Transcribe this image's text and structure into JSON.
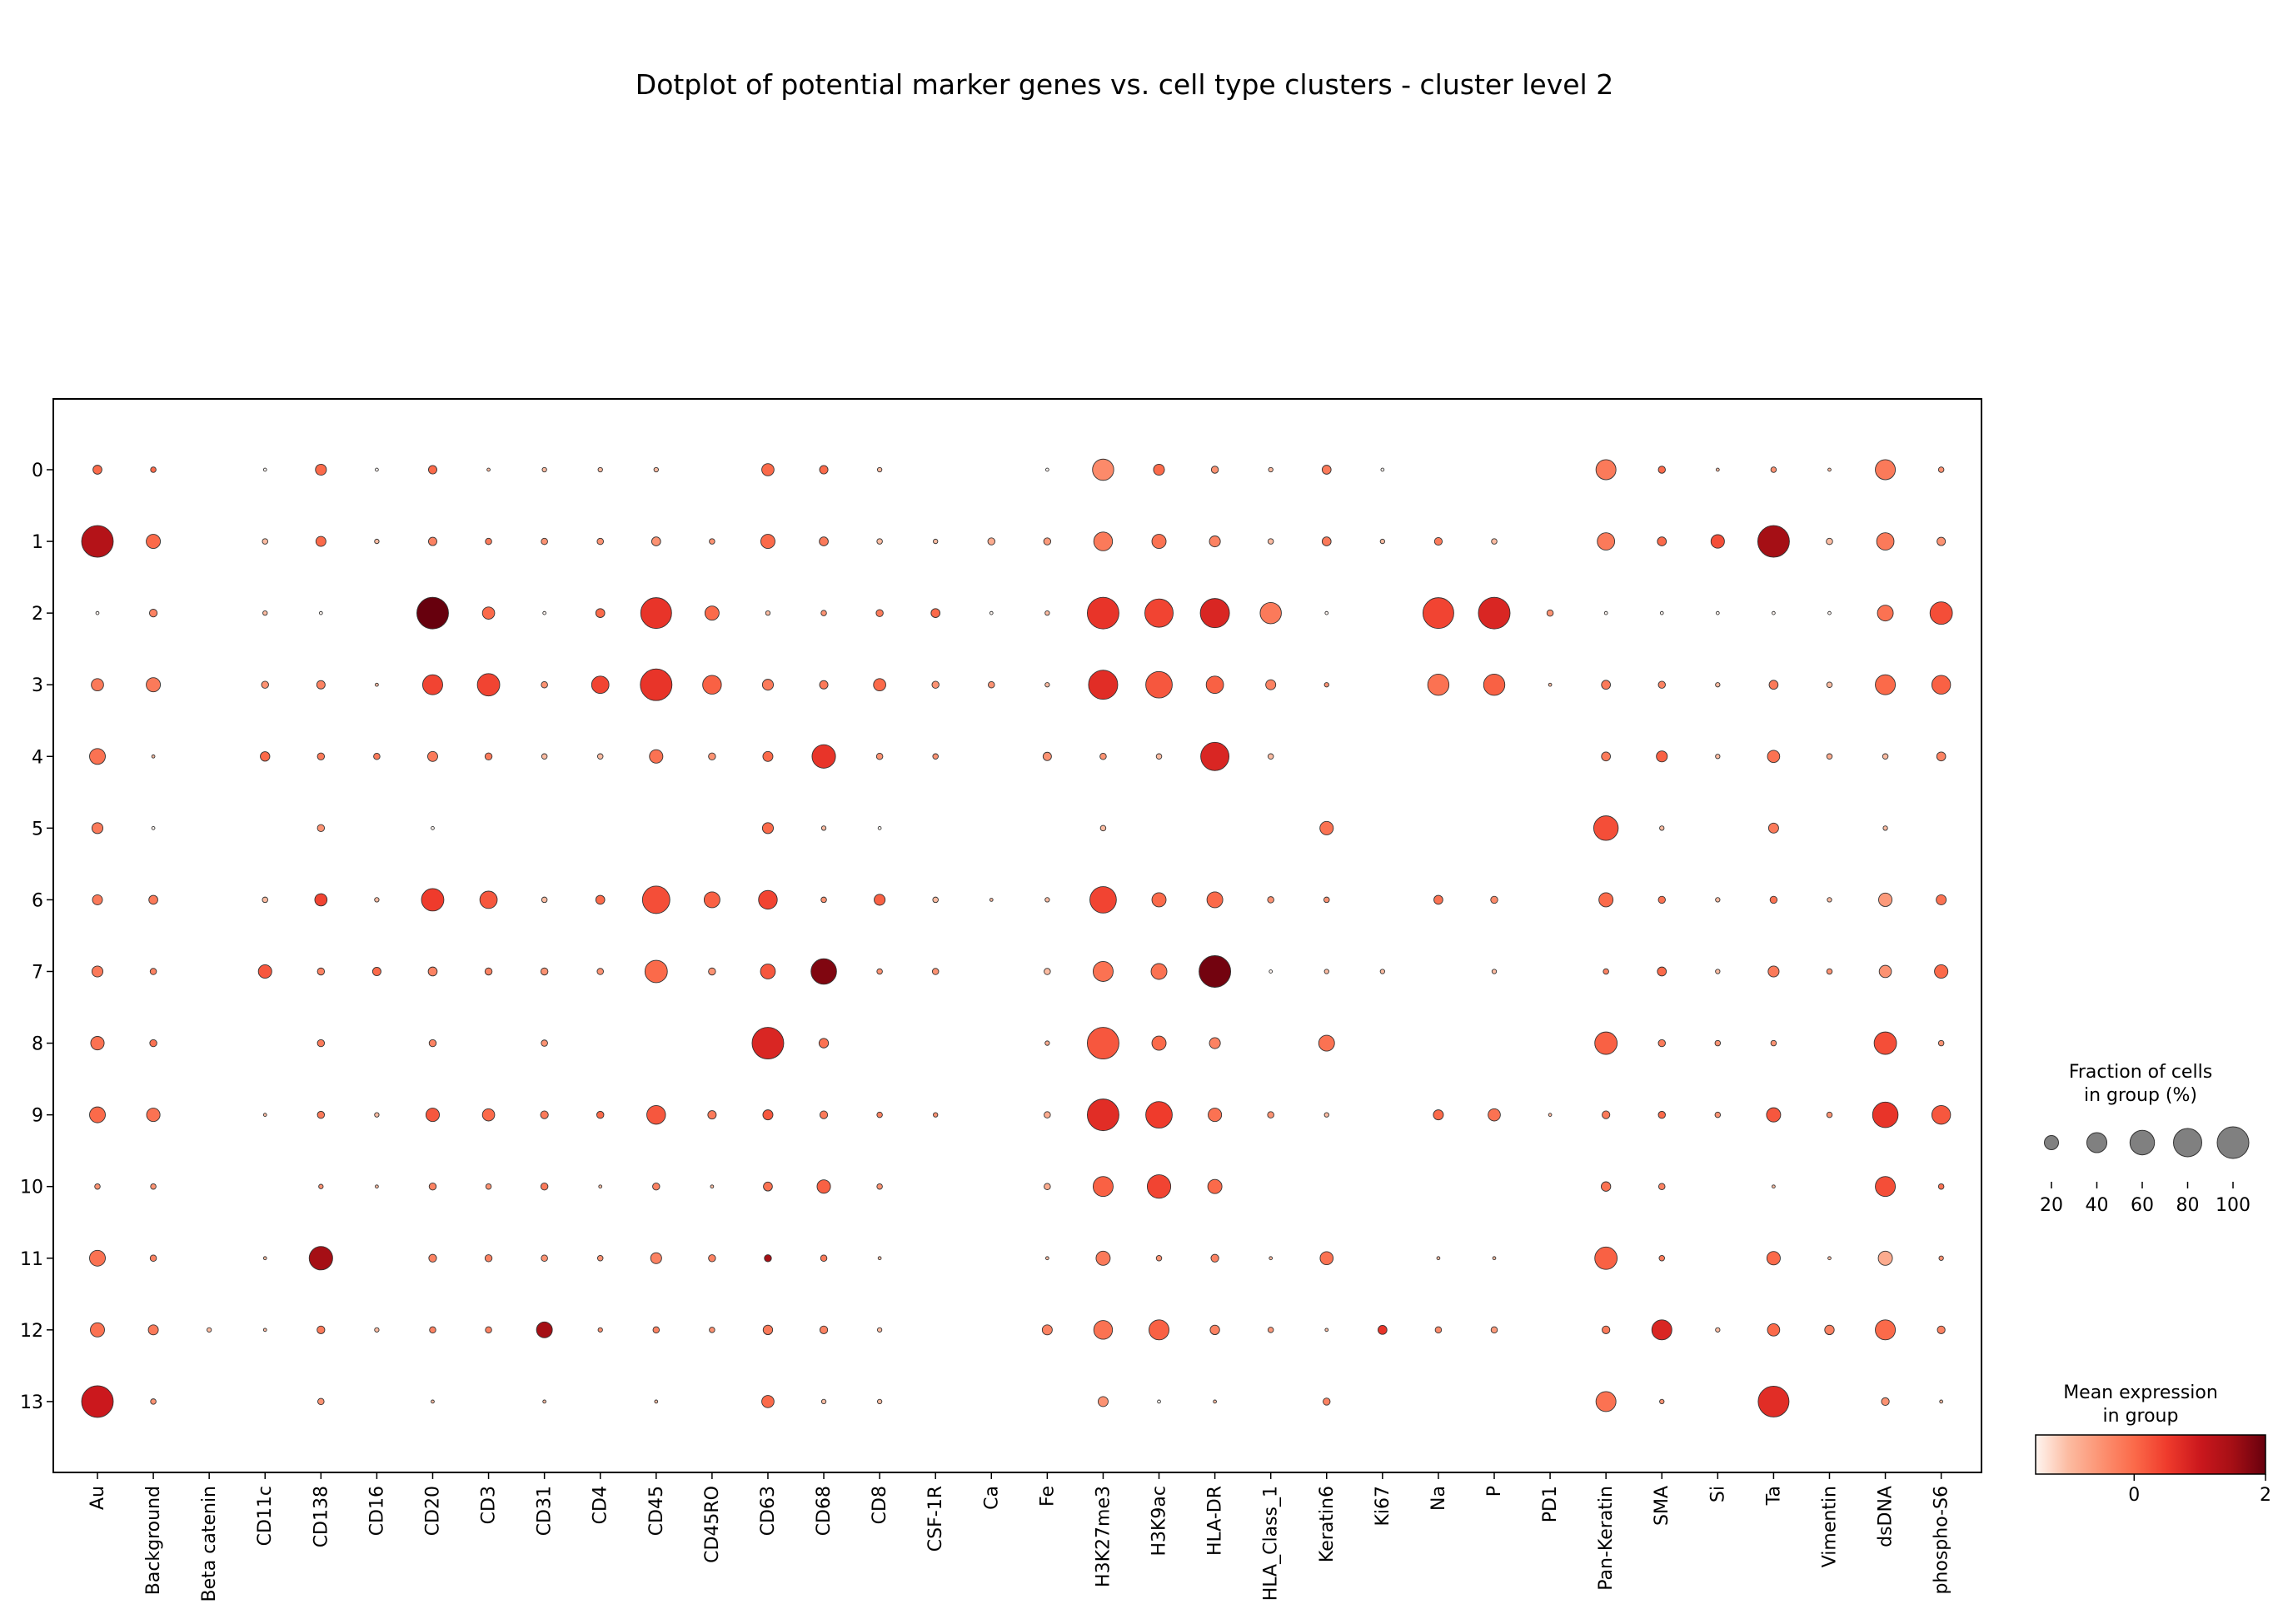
{
  "chart_data": {
    "type": "dotplot",
    "title": "Dotplot of potential marker genes vs. cell type clusters - cluster level 2",
    "xlabel": "",
    "ylabel": "",
    "genes": [
      "Au",
      "Background",
      "Beta catenin",
      "CD11c",
      "CD138",
      "CD16",
      "CD20",
      "CD3",
      "CD31",
      "CD4",
      "CD45",
      "CD45RO",
      "CD63",
      "CD68",
      "CD8",
      "CSF-1R",
      "Ca",
      "Fe",
      "H3K27me3",
      "H3K9ac",
      "HLA-DR",
      "HLA_Class_1",
      "Keratin6",
      "Ki67",
      "Na",
      "P",
      "PD1",
      "Pan-Keratin",
      "SMA",
      "Si",
      "Ta",
      "Vimentin",
      "dsDNA",
      "phospho-S6"
    ],
    "clusters": [
      "0",
      "1",
      "2",
      "3",
      "4",
      "5",
      "6",
      "7",
      "8",
      "9",
      "10",
      "11",
      "12",
      "13"
    ],
    "fraction_pct": [
      [
        8,
        3,
        0,
        1,
        12,
        1,
        7,
        1,
        2,
        2,
        2,
        0,
        15,
        7,
        2,
        0,
        0,
        1,
        45,
        12,
        5,
        2,
        8,
        1,
        0,
        0,
        0,
        40,
        5,
        1,
        3,
        1,
        40,
        3
      ],
      [
        100,
        20,
        0,
        3,
        10,
        2,
        7,
        4,
        4,
        4,
        8,
        3,
        20,
        8,
        3,
        2,
        5,
        5,
        35,
        20,
        12,
        3,
        8,
        2,
        6,
        3,
        0,
        30,
        8,
        18,
        100,
        4,
        30,
        7
      ],
      [
        1,
        6,
        0,
        2,
        1,
        0,
        100,
        15,
        1,
        8,
        95,
        20,
        2,
        3,
        5,
        8,
        1,
        2,
        100,
        80,
        85,
        45,
        1,
        0,
        95,
        100,
        4,
        1,
        1,
        1,
        1,
        1,
        25,
        50
      ],
      [
        15,
        20,
        0,
        5,
        7,
        1,
        40,
        50,
        4,
        30,
        100,
        35,
        12,
        7,
        15,
        5,
        4,
        2,
        85,
        70,
        30,
        10,
        2,
        0,
        45,
        45,
        1,
        8,
        5,
        2,
        8,
        3,
        40,
        35
      ],
      [
        25,
        1,
        0,
        9,
        5,
        4,
        10,
        5,
        3,
        3,
        18,
        5,
        10,
        55,
        4,
        3,
        0,
        7,
        4,
        3,
        80,
        3,
        0,
        0,
        0,
        0,
        0,
        8,
        12,
        2,
        15,
        3,
        3,
        8
      ],
      [
        12,
        1,
        0,
        0,
        5,
        0,
        1,
        0,
        0,
        0,
        0,
        0,
        12,
        2,
        1,
        0,
        0,
        0,
        3,
        0,
        0,
        0,
        18,
        0,
        0,
        0,
        0,
        60,
        2,
        0,
        10,
        0,
        2,
        0
      ],
      [
        10,
        8,
        0,
        3,
        15,
        2,
        50,
        30,
        3,
        8,
        75,
        25,
        35,
        3,
        12,
        3,
        1,
        2,
        70,
        20,
        25,
        4,
        3,
        0,
        8,
        5,
        0,
        20,
        5,
        2,
        5,
        2,
        18,
        10
      ],
      [
        12,
        4,
        0,
        18,
        5,
        7,
        8,
        5,
        5,
        4,
        50,
        5,
        22,
        65,
        3,
        4,
        0,
        4,
        40,
        25,
        100,
        1,
        2,
        2,
        0,
        2,
        0,
        3,
        8,
        2,
        12,
        3,
        15,
        18
      ],
      [
        18,
        5,
        0,
        0,
        5,
        0,
        5,
        0,
        4,
        0,
        0,
        0,
        100,
        9,
        0,
        0,
        0,
        2,
        100,
        20,
        12,
        0,
        25,
        0,
        0,
        0,
        0,
        50,
        5,
        3,
        3,
        0,
        50,
        3
      ],
      [
        25,
        18,
        0,
        1,
        5,
        2,
        18,
        15,
        6,
        5,
        35,
        7,
        10,
        6,
        3,
        2,
        0,
        4,
        100,
        70,
        18,
        4,
        2,
        0,
        10,
        15,
        1,
        6,
        5,
        3,
        20,
        3,
        65,
        35
      ],
      [
        3,
        3,
        0,
        0,
        2,
        1,
        5,
        3,
        5,
        1,
        5,
        1,
        8,
        18,
        3,
        0,
        0,
        4,
        40,
        55,
        20,
        0,
        0,
        0,
        0,
        0,
        0,
        9,
        4,
        0,
        1,
        0,
        40,
        3
      ],
      [
        25,
        4,
        0,
        1,
        55,
        0,
        6,
        5,
        4,
        3,
        12,
        5,
        5,
        4,
        1,
        0,
        0,
        1,
        20,
        3,
        6,
        1,
        17,
        0,
        1,
        1,
        0,
        50,
        3,
        0,
        18,
        1,
        20,
        2
      ],
      [
        20,
        10,
        2,
        1,
        6,
        2,
        4,
        4,
        25,
        2,
        4,
        3,
        9,
        6,
        2,
        0,
        0,
        10,
        35,
        40,
        9,
        3,
        1,
        8,
        4,
        4,
        0,
        6,
        40,
        2,
        15,
        9,
        40,
        6
      ],
      [
        100,
        3,
        0,
        0,
        4,
        0,
        1,
        0,
        1,
        0,
        1,
        0,
        15,
        2,
        2,
        0,
        0,
        0,
        10,
        1,
        1,
        0,
        5,
        0,
        0,
        0,
        0,
        40,
        2,
        0,
        95,
        0,
        6,
        1
      ]
    ],
    "mean_expression": [
      [
        0.0,
        0.0,
        -1.5,
        -1.5,
        0.0,
        -1.5,
        0.0,
        -1.0,
        -1.0,
        -1.0,
        -1.0,
        -1.5,
        0.0,
        0.0,
        -1.0,
        -1.5,
        -1.5,
        -1.5,
        -0.4,
        0.0,
        -0.5,
        -1.0,
        -0.2,
        -1.5,
        -1.5,
        -1.5,
        -1.5,
        -0.2,
        0.0,
        -1.0,
        -0.5,
        -1.0,
        -0.2,
        -0.5
      ],
      [
        1.3,
        0.0,
        -1.5,
        -1.0,
        0.0,
        -1.0,
        -0.3,
        -0.2,
        -0.5,
        -0.5,
        -0.5,
        -0.5,
        0.0,
        -0.2,
        -1.0,
        -1.0,
        -0.8,
        -0.6,
        -0.2,
        -0.1,
        -0.3,
        -1.0,
        -0.2,
        -1.0,
        -0.2,
        -1.0,
        -1.5,
        -0.2,
        0.0,
        0.3,
        1.5,
        -1.0,
        -0.2,
        -0.5
      ],
      [
        -1.5,
        -0.3,
        -1.5,
        -1.0,
        -1.5,
        -1.5,
        2.0,
        0.0,
        -1.5,
        0.0,
        0.6,
        0.0,
        -1.0,
        -0.5,
        -0.2,
        0.0,
        -1.5,
        -1.0,
        0.6,
        0.4,
        0.8,
        -0.2,
        -1.5,
        -1.5,
        0.4,
        0.8,
        -0.5,
        -1.5,
        -1.5,
        -1.5,
        -1.5,
        -1.5,
        -0.1,
        0.3
      ],
      [
        -0.2,
        -0.2,
        -1.5,
        -0.5,
        -0.3,
        -1.0,
        0.4,
        0.4,
        -0.5,
        0.4,
        0.6,
        0.1,
        -0.2,
        -0.2,
        0.0,
        -0.5,
        -0.5,
        -1.0,
        0.7,
        0.2,
        0.1,
        -0.3,
        -0.5,
        -1.5,
        -0.1,
        0.1,
        -1.0,
        -0.2,
        -0.3,
        -1.0,
        -0.2,
        -1.0,
        0.0,
        0.1
      ],
      [
        -0.1,
        -1.0,
        -1.5,
        0.0,
        -0.2,
        -0.2,
        -0.2,
        -0.2,
        -1.0,
        -1.0,
        -0.1,
        -0.5,
        0.0,
        0.6,
        -0.5,
        -0.5,
        -1.5,
        -0.5,
        -0.5,
        -1.0,
        0.8,
        -1.0,
        -1.5,
        -1.5,
        -1.5,
        -1.5,
        -1.5,
        -0.2,
        0.1,
        -1.0,
        -0.1,
        -0.8,
        -1.0,
        -0.3
      ],
      [
        -0.2,
        -1.5,
        -1.5,
        -1.5,
        -0.5,
        -1.5,
        -1.5,
        -1.5,
        -1.5,
        -1.5,
        -1.5,
        -1.5,
        0.0,
        -1.0,
        -1.5,
        -1.5,
        -1.5,
        -1.5,
        -1.0,
        -1.5,
        -1.0,
        -1.5,
        -0.1,
        -1.5,
        -1.5,
        -1.5,
        -1.5,
        0.3,
        -1.0,
        -1.5,
        -0.2,
        -1.5,
        -1.0,
        -1.5
      ],
      [
        -0.2,
        -0.2,
        -1.5,
        -1.0,
        0.4,
        -1.0,
        0.5,
        0.2,
        -1.0,
        0.0,
        0.3,
        0.1,
        0.4,
        -0.5,
        0.1,
        -1.0,
        -1.0,
        -1.0,
        0.4,
        0.0,
        0.0,
        -0.5,
        -0.5,
        -1.5,
        -0.1,
        -0.4,
        -1.5,
        0.0,
        -0.1,
        -1.0,
        -0.1,
        -1.0,
        -0.6,
        -0.1
      ],
      [
        -0.2,
        -0.3,
        -1.0,
        0.2,
        -0.3,
        0.0,
        -0.3,
        -0.3,
        -0.5,
        -0.5,
        0.0,
        -0.5,
        0.2,
        1.8,
        -0.5,
        -0.5,
        -1.5,
        -1.0,
        -0.1,
        -0.1,
        1.9,
        -1.5,
        -1.0,
        -1.0,
        -1.0,
        -1.0,
        -1.5,
        -0.3,
        0.0,
        -1.0,
        -0.2,
        -0.5,
        -0.5,
        0.0
      ],
      [
        -0.1,
        -0.1,
        -1.5,
        -1.5,
        -0.2,
        -1.5,
        -0.3,
        -1.5,
        -0.5,
        -1.5,
        -1.5,
        -1.5,
        0.8,
        -0.1,
        -1.5,
        -1.5,
        -1.5,
        -0.8,
        0.2,
        0.0,
        -0.3,
        -1.5,
        -0.1,
        -1.5,
        -1.5,
        -1.5,
        -1.5,
        0.1,
        -0.2,
        -0.5,
        -0.5,
        -1.5,
        0.3,
        -0.5
      ],
      [
        0.0,
        -0.1,
        -1.5,
        -1.0,
        -0.2,
        -1.0,
        0.2,
        0.0,
        -0.2,
        0.0,
        0.2,
        -0.2,
        0.2,
        -0.2,
        -0.3,
        -0.5,
        -1.0,
        -0.8,
        0.7,
        0.5,
        -0.1,
        -0.5,
        -1.0,
        -1.5,
        0.0,
        -0.1,
        -1.0,
        -0.2,
        0.0,
        -0.5,
        0.2,
        -0.5,
        0.6,
        0.2
      ],
      [
        -0.5,
        -0.5,
        -1.5,
        -1.5,
        -0.5,
        -1.0,
        -0.3,
        -0.5,
        -0.2,
        -1.0,
        -0.3,
        -1.0,
        -0.1,
        0.1,
        -0.5,
        -1.5,
        -1.5,
        -0.8,
        0.1,
        0.4,
        0.0,
        -1.5,
        -1.5,
        -1.5,
        -1.5,
        -1.5,
        -1.5,
        -0.1,
        -0.3,
        -1.5,
        -1.0,
        -1.5,
        0.3,
        -0.1
      ],
      [
        -0.1,
        -0.3,
        -1.5,
        -1.0,
        1.5,
        -1.5,
        -0.3,
        -0.3,
        -0.5,
        -0.5,
        -0.3,
        -0.3,
        1.5,
        -0.2,
        -1.0,
        -1.5,
        -1.5,
        -1.0,
        -0.2,
        -0.5,
        -0.3,
        -1.0,
        -0.1,
        -1.5,
        -1.0,
        -1.0,
        -1.5,
        0.1,
        -0.2,
        -1.5,
        0.0,
        -1.0,
        -0.8,
        -0.5
      ],
      [
        -0.1,
        -0.2,
        -1.0,
        -1.0,
        -0.2,
        -1.0,
        -0.3,
        -0.3,
        1.5,
        -0.5,
        -0.3,
        -0.5,
        -0.2,
        -0.3,
        -1.0,
        -1.5,
        -1.5,
        -0.3,
        -0.1,
        0.1,
        -0.3,
        -0.6,
        -1.0,
        0.6,
        -0.4,
        -0.6,
        -1.5,
        -0.2,
        0.8,
        -1.0,
        0.0,
        -0.3,
        0.0,
        -0.3
      ],
      [
        1.0,
        -0.5,
        -1.5,
        -1.5,
        -0.5,
        -1.5,
        -1.0,
        -1.5,
        -1.0,
        -1.5,
        -1.0,
        -1.5,
        0.0,
        -1.0,
        -1.0,
        -1.5,
        -1.5,
        -1.5,
        -0.5,
        -1.5,
        -1.0,
        -1.5,
        -0.3,
        -1.5,
        -1.5,
        -1.5,
        -1.5,
        -0.1,
        -0.5,
        -1.5,
        0.7,
        -1.5,
        -0.5,
        -1.0
      ]
    ],
    "size_legend": {
      "title": "Fraction of cells\nin group (%)",
      "title_lines": [
        "Fraction of cells",
        "in group (%)"
      ],
      "values": [
        20,
        40,
        60,
        80,
        100
      ],
      "labels": [
        "20",
        "40",
        "60",
        "80",
        "100"
      ]
    },
    "color_legend": {
      "title": "Mean expression\nin group",
      "title_lines": [
        "Mean expression",
        "in group"
      ],
      "range": [
        -1.5,
        2
      ],
      "ticks": [
        0,
        2
      ],
      "tick_labels": [
        "0",
        "2"
      ],
      "colormap": "Reds",
      "colors": [
        "#fff5f0",
        "#fcbba1",
        "#fc9272",
        "#fb6a4a",
        "#ef3b2c",
        "#cb181d",
        "#a50f15",
        "#67000d"
      ]
    }
  }
}
